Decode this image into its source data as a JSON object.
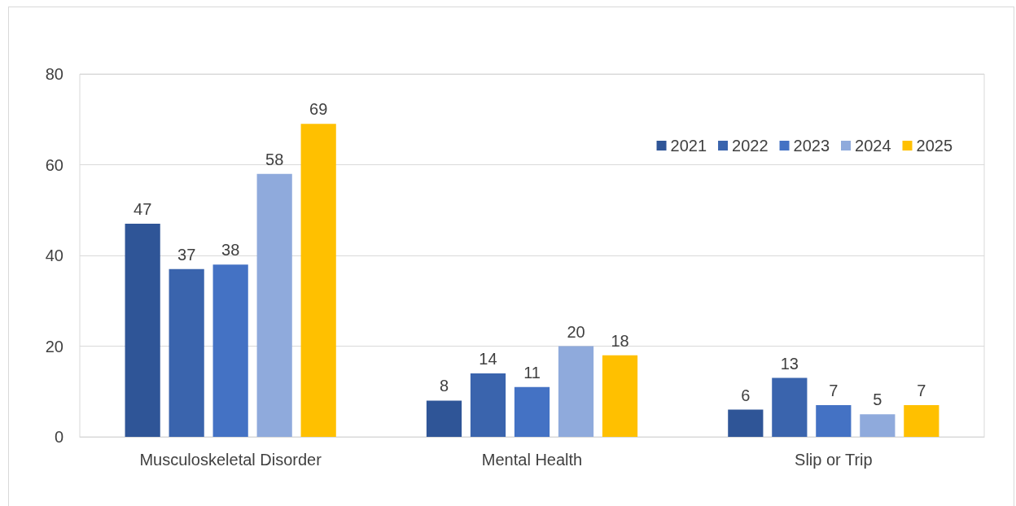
{
  "chart_data": {
    "type": "bar",
    "categories": [
      "Musculoskeletal Disorder",
      "Mental Health",
      "Slip or Trip"
    ],
    "series": [
      {
        "name": "2021",
        "color": "#2f5597",
        "values": [
          47,
          8,
          6
        ]
      },
      {
        "name": "2022",
        "color": "#3a64ad",
        "values": [
          37,
          14,
          13
        ]
      },
      {
        "name": "2023",
        "color": "#4472c4",
        "values": [
          38,
          11,
          7
        ]
      },
      {
        "name": "2024",
        "color": "#8faadc",
        "values": [
          58,
          20,
          5
        ]
      },
      {
        "name": "2025",
        "color": "#ffc000",
        "values": [
          69,
          18,
          7
        ]
      }
    ],
    "ylim": [
      0,
      80
    ],
    "yticks": [
      0,
      20,
      40,
      60,
      80
    ],
    "grid": "y",
    "legend": "top right",
    "data_labels": true
  }
}
